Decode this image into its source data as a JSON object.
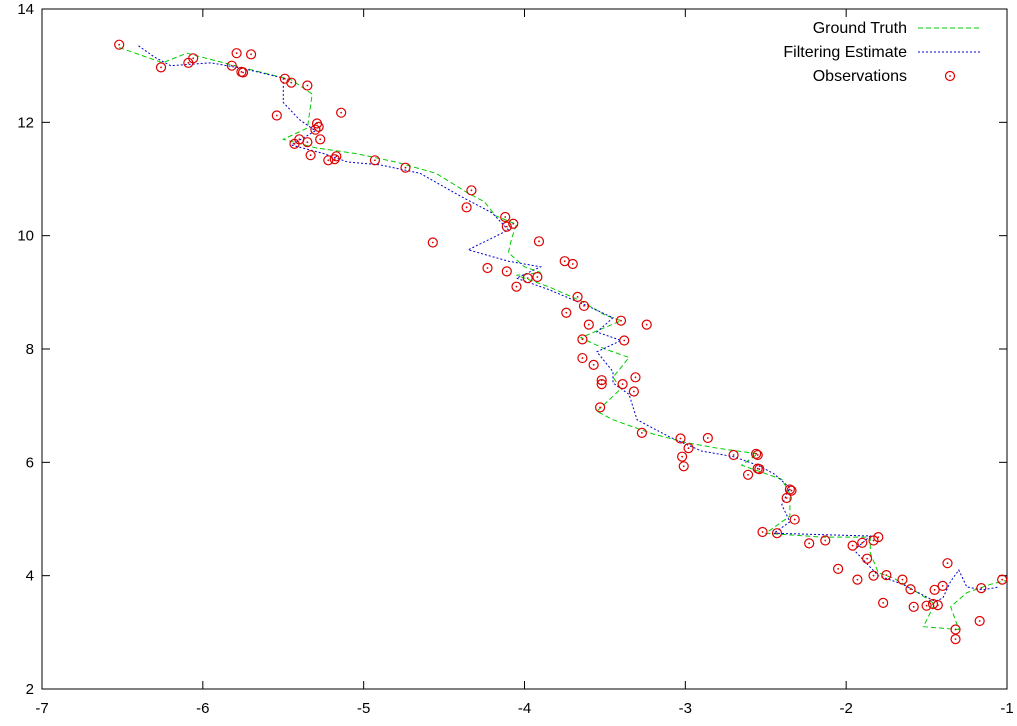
{
  "chart_data": {
    "type": "line",
    "title": "",
    "xlabel": "",
    "ylabel": "",
    "xlim": [
      -7,
      -1
    ],
    "ylim": [
      2,
      14
    ],
    "x_ticks": [
      -7,
      -6,
      -5,
      -4,
      -3,
      -2,
      -1
    ],
    "y_ticks": [
      2,
      4,
      6,
      8,
      10,
      12,
      14
    ],
    "grid": false,
    "legend_position": "top-right",
    "series": [
      {
        "name": "Ground Truth",
        "style": "dashed-line",
        "color": "#00cc00",
        "points": [
          [
            -6.52,
            13.32
          ],
          [
            -6.25,
            13.05
          ],
          [
            -6.1,
            13.22
          ],
          [
            -5.8,
            13.0
          ],
          [
            -5.45,
            12.75
          ],
          [
            -5.32,
            12.5
          ],
          [
            -5.35,
            11.9
          ],
          [
            -5.5,
            11.7
          ],
          [
            -5.3,
            11.55
          ],
          [
            -5.05,
            11.45
          ],
          [
            -4.8,
            11.3
          ],
          [
            -4.55,
            11.1
          ],
          [
            -4.35,
            10.75
          ],
          [
            -4.25,
            10.6
          ],
          [
            -4.18,
            10.35
          ],
          [
            -4.05,
            10.2
          ],
          [
            -4.08,
            9.95
          ],
          [
            -4.1,
            9.7
          ],
          [
            -4.0,
            9.45
          ],
          [
            -3.9,
            9.35
          ],
          [
            -4.05,
            9.3
          ],
          [
            -3.85,
            9.1
          ],
          [
            -3.65,
            8.85
          ],
          [
            -3.5,
            8.6
          ],
          [
            -3.4,
            8.5
          ],
          [
            -3.65,
            8.2
          ],
          [
            -3.5,
            8.0
          ],
          [
            -3.35,
            7.85
          ],
          [
            -3.45,
            7.5
          ],
          [
            -3.4,
            7.3
          ],
          [
            -3.55,
            6.9
          ],
          [
            -3.45,
            6.75
          ],
          [
            -3.2,
            6.5
          ],
          [
            -3.0,
            6.35
          ],
          [
            -2.8,
            6.25
          ],
          [
            -2.55,
            6.15
          ],
          [
            -2.65,
            5.95
          ],
          [
            -2.4,
            5.7
          ],
          [
            -2.35,
            5.45
          ],
          [
            -2.35,
            5.05
          ],
          [
            -2.5,
            4.75
          ],
          [
            -2.15,
            4.68
          ],
          [
            -1.85,
            4.68
          ],
          [
            -1.85,
            4.4
          ],
          [
            -1.8,
            4.05
          ],
          [
            -1.7,
            3.95
          ],
          [
            -1.5,
            3.6
          ],
          [
            -1.45,
            3.5
          ],
          [
            -1.52,
            3.1
          ],
          [
            -1.3,
            3.05
          ],
          [
            -1.35,
            3.45
          ],
          [
            -1.25,
            3.7
          ],
          [
            -1.1,
            3.85
          ],
          [
            -1.0,
            3.92
          ]
        ]
      },
      {
        "name": "Filtering Estimate",
        "style": "dotted-line",
        "color": "#0000cc",
        "points": [
          [
            -6.4,
            13.35
          ],
          [
            -6.3,
            13.15
          ],
          [
            -6.2,
            13.0
          ],
          [
            -5.95,
            13.05
          ],
          [
            -5.75,
            12.95
          ],
          [
            -5.5,
            12.78
          ],
          [
            -5.5,
            12.35
          ],
          [
            -5.4,
            12.05
          ],
          [
            -5.3,
            11.85
          ],
          [
            -5.45,
            11.6
          ],
          [
            -5.25,
            11.45
          ],
          [
            -5.1,
            11.3
          ],
          [
            -4.9,
            11.25
          ],
          [
            -4.65,
            11.1
          ],
          [
            -4.4,
            10.7
          ],
          [
            -4.2,
            10.4
          ],
          [
            -4.1,
            10.1
          ],
          [
            -4.35,
            9.75
          ],
          [
            -4.1,
            9.55
          ],
          [
            -3.9,
            9.45
          ],
          [
            -4.05,
            9.25
          ],
          [
            -3.85,
            9.05
          ],
          [
            -3.6,
            8.75
          ],
          [
            -3.45,
            8.55
          ],
          [
            -3.55,
            8.3
          ],
          [
            -3.4,
            8.15
          ],
          [
            -3.55,
            7.95
          ],
          [
            -3.45,
            7.6
          ],
          [
            -3.45,
            7.4
          ],
          [
            -3.35,
            7.2
          ],
          [
            -3.3,
            6.75
          ],
          [
            -3.1,
            6.45
          ],
          [
            -2.9,
            6.2
          ],
          [
            -2.7,
            6.1
          ],
          [
            -2.55,
            5.95
          ],
          [
            -2.45,
            5.8
          ],
          [
            -2.35,
            5.55
          ],
          [
            -2.4,
            5.25
          ],
          [
            -2.35,
            4.95
          ],
          [
            -2.45,
            4.75
          ],
          [
            -2.1,
            4.72
          ],
          [
            -1.85,
            4.7
          ],
          [
            -1.95,
            4.45
          ],
          [
            -1.8,
            4.0
          ],
          [
            -1.65,
            3.85
          ],
          [
            -1.55,
            3.7
          ],
          [
            -1.45,
            3.55
          ],
          [
            -1.4,
            3.6
          ],
          [
            -1.35,
            3.9
          ],
          [
            -1.3,
            4.1
          ],
          [
            -1.25,
            3.8
          ],
          [
            -1.15,
            3.75
          ],
          [
            -1.05,
            3.8
          ]
        ]
      },
      {
        "name": "Observations",
        "style": "markers",
        "color": "#dd0000",
        "points": [
          [
            -6.52,
            13.37
          ],
          [
            -6.26,
            12.97
          ],
          [
            -6.09,
            13.05
          ],
          [
            -6.06,
            13.13
          ],
          [
            -5.82,
            13.0
          ],
          [
            -5.79,
            13.22
          ],
          [
            -5.76,
            12.89
          ],
          [
            -5.75,
            12.88
          ],
          [
            -5.7,
            13.2
          ],
          [
            -5.49,
            12.77
          ],
          [
            -5.45,
            12.7
          ],
          [
            -5.35,
            12.65
          ],
          [
            -5.54,
            12.12
          ],
          [
            -5.29,
            11.98
          ],
          [
            -5.28,
            11.92
          ],
          [
            -5.3,
            11.87
          ],
          [
            -5.14,
            12.17
          ],
          [
            -5.43,
            11.62
          ],
          [
            -5.4,
            11.7
          ],
          [
            -5.35,
            11.65
          ],
          [
            -5.27,
            11.7
          ],
          [
            -5.33,
            11.42
          ],
          [
            -5.22,
            11.33
          ],
          [
            -5.18,
            11.35
          ],
          [
            -5.17,
            11.4
          ],
          [
            -4.93,
            11.33
          ],
          [
            -4.74,
            11.2
          ],
          [
            -4.33,
            10.8
          ],
          [
            -4.36,
            10.5
          ],
          [
            -4.12,
            10.33
          ],
          [
            -4.07,
            10.21
          ],
          [
            -4.11,
            10.16
          ],
          [
            -4.57,
            9.88
          ],
          [
            -3.91,
            9.9
          ],
          [
            -3.75,
            9.55
          ],
          [
            -3.7,
            9.5
          ],
          [
            -4.23,
            9.43
          ],
          [
            -4.11,
            9.37
          ],
          [
            -4.05,
            9.1
          ],
          [
            -3.98,
            9.25
          ],
          [
            -3.92,
            9.27
          ],
          [
            -3.67,
            8.92
          ],
          [
            -3.63,
            8.76
          ],
          [
            -3.74,
            8.64
          ],
          [
            -3.6,
            8.43
          ],
          [
            -3.4,
            8.5
          ],
          [
            -3.24,
            8.43
          ],
          [
            -3.64,
            8.17
          ],
          [
            -3.38,
            8.15
          ],
          [
            -3.64,
            7.84
          ],
          [
            -3.57,
            7.72
          ],
          [
            -3.52,
            7.45
          ],
          [
            -3.52,
            7.38
          ],
          [
            -3.39,
            7.38
          ],
          [
            -3.31,
            7.5
          ],
          [
            -3.32,
            7.25
          ],
          [
            -3.53,
            6.97
          ],
          [
            -3.27,
            6.52
          ],
          [
            -3.03,
            6.42
          ],
          [
            -3.02,
            6.1
          ],
          [
            -2.98,
            6.25
          ],
          [
            -2.86,
            6.43
          ],
          [
            -3.01,
            5.93
          ],
          [
            -2.7,
            6.13
          ],
          [
            -2.56,
            6.15
          ],
          [
            -2.55,
            6.13
          ],
          [
            -2.61,
            5.78
          ],
          [
            -2.55,
            5.89
          ],
          [
            -2.54,
            5.88
          ],
          [
            -2.35,
            5.52
          ],
          [
            -2.34,
            5.5
          ],
          [
            -2.37,
            5.37
          ],
          [
            -2.32,
            4.99
          ],
          [
            -2.52,
            4.77
          ],
          [
            -2.43,
            4.75
          ],
          [
            -2.23,
            4.57
          ],
          [
            -2.13,
            4.62
          ],
          [
            -1.96,
            4.53
          ],
          [
            -1.9,
            4.58
          ],
          [
            -1.83,
            4.62
          ],
          [
            -1.8,
            4.68
          ],
          [
            -2.05,
            4.12
          ],
          [
            -1.93,
            3.93
          ],
          [
            -1.87,
            4.3
          ],
          [
            -1.83,
            4.0
          ],
          [
            -1.75,
            4.01
          ],
          [
            -1.77,
            3.52
          ],
          [
            -1.65,
            3.93
          ],
          [
            -1.6,
            3.76
          ],
          [
            -1.58,
            3.45
          ],
          [
            -1.5,
            3.47
          ],
          [
            -1.46,
            3.5
          ],
          [
            -1.43,
            3.48
          ],
          [
            -1.45,
            3.75
          ],
          [
            -1.4,
            3.82
          ],
          [
            -1.37,
            4.22
          ],
          [
            -1.32,
            3.05
          ],
          [
            -1.32,
            2.88
          ],
          [
            -1.16,
            3.78
          ],
          [
            -1.17,
            3.2
          ],
          [
            -1.03,
            3.93
          ]
        ]
      }
    ]
  }
}
